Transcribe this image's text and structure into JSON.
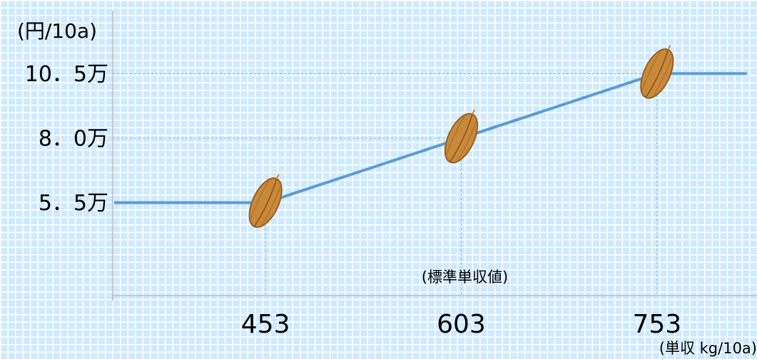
{
  "chart_data": {
    "type": "line",
    "y_label": "(円/10a)",
    "x_label": "(単収 kg/10a)",
    "annotation": "(標準単収値)",
    "x": [
      337,
      453,
      603,
      753,
      822
    ],
    "series": [
      {
        "color": "#5b9bd5",
        "values": [
          55000,
          55000,
          80000,
          105000,
          105000
        ]
      }
    ],
    "xlim": [
      337,
      822
    ],
    "xticks": [
      453,
      603,
      753
    ],
    "ylim": [
      19000,
      128000
    ],
    "yticks": [
      {
        "value": 55000,
        "label": "5．5万"
      },
      {
        "value": 80000,
        "label": "8．0万"
      },
      {
        "value": 105000,
        "label": "10．5万"
      }
    ]
  }
}
